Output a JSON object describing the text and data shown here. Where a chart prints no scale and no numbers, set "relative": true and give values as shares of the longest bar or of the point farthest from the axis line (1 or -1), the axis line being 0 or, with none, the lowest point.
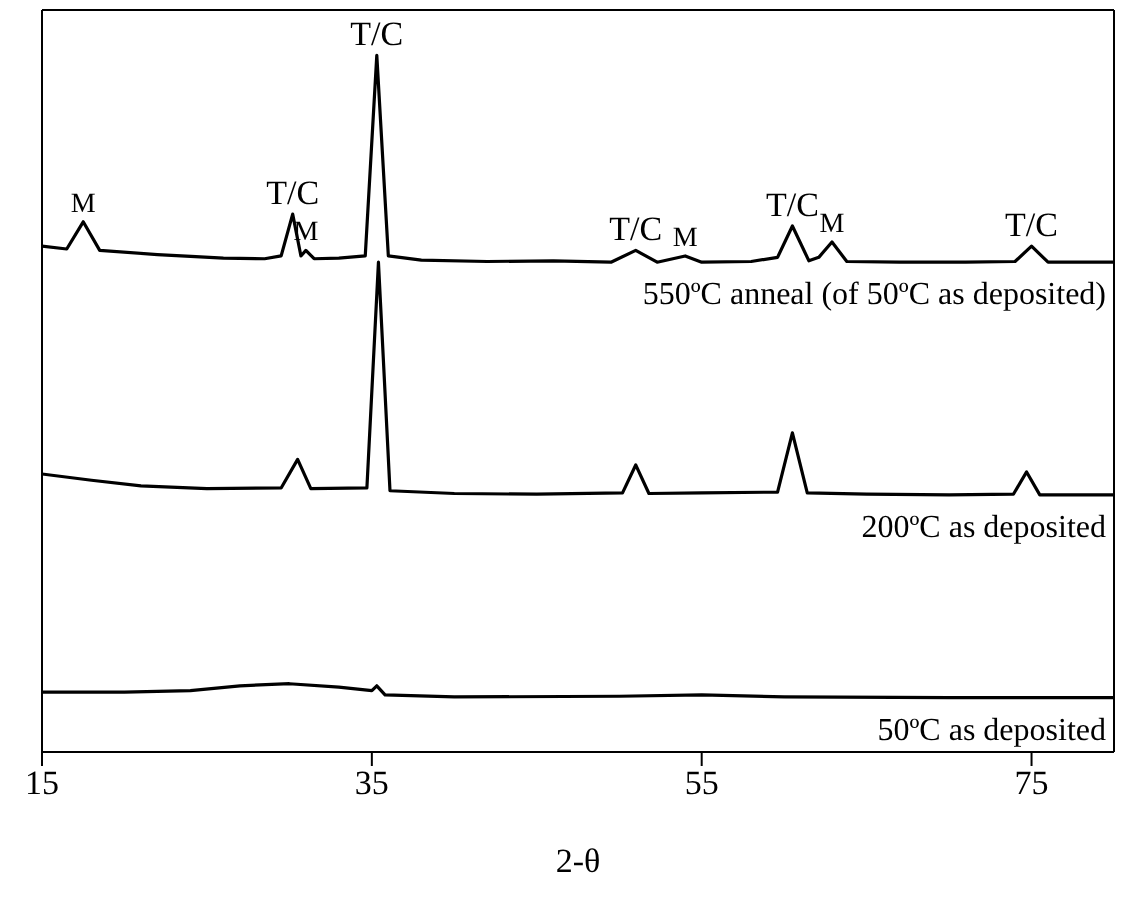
{
  "chart_data": {
    "type": "line",
    "relative": true,
    "xlabel": "2-θ",
    "xlim": [
      15,
      80
    ],
    "xticks": [
      15,
      35,
      55,
      75
    ],
    "grid": false,
    "legend": false,
    "marker": "none",
    "line_style": "solid",
    "series": [
      {
        "name": "550ºC anneal (of 50ºC as deposited)",
        "color": "#000000",
        "x": [
          15,
          16.5,
          17.5,
          18.5,
          22,
          26,
          28.5,
          29.5,
          30.2,
          30.7,
          31.0,
          31.5,
          33,
          34.6,
          35.3,
          36.0,
          38,
          42,
          46,
          49.5,
          51.0,
          52.3,
          54.0,
          55,
          58,
          59.6,
          60.5,
          61.5,
          62.1,
          62.9,
          63.8,
          67,
          71,
          74.0,
          75.0,
          76.0,
          80
        ],
        "values": [
          0.726,
          0.722,
          0.761,
          0.72,
          0.714,
          0.709,
          0.708,
          0.712,
          0.772,
          0.712,
          0.72,
          0.708,
          0.709,
          0.712,
          1.0,
          0.712,
          0.706,
          0.704,
          0.705,
          0.703,
          0.72,
          0.703,
          0.712,
          0.703,
          0.704,
          0.71,
          0.755,
          0.705,
          0.71,
          0.732,
          0.704,
          0.703,
          0.703,
          0.704,
          0.726,
          0.703,
          0.703
        ]
      },
      {
        "name": "200ºC as deposited",
        "color": "#000000",
        "x": [
          15,
          18,
          21,
          25,
          29.5,
          30.5,
          31.3,
          34.7,
          35.4,
          36.1,
          40,
          45,
          50.2,
          51.0,
          51.8,
          55,
          59.6,
          60.5,
          61.4,
          65,
          70,
          73.9,
          74.7,
          75.5,
          80
        ],
        "values": [
          0.399,
          0.39,
          0.382,
          0.378,
          0.379,
          0.42,
          0.378,
          0.379,
          0.703,
          0.375,
          0.371,
          0.37,
          0.372,
          0.412,
          0.371,
          0.372,
          0.373,
          0.458,
          0.372,
          0.37,
          0.369,
          0.37,
          0.402,
          0.369,
          0.369
        ]
      },
      {
        "name": "50ºC as deposited",
        "color": "#000000",
        "x": [
          15,
          20,
          24,
          27,
          30,
          33,
          35.0,
          35.3,
          35.8,
          40,
          50,
          55,
          60,
          70,
          80
        ],
        "values": [
          0.086,
          0.086,
          0.088,
          0.095,
          0.098,
          0.093,
          0.088,
          0.095,
          0.082,
          0.079,
          0.08,
          0.082,
          0.079,
          0.078,
          0.078
        ]
      }
    ],
    "annotations": [
      {
        "text": "M",
        "x": 17.5,
        "y": 0.761
      },
      {
        "text": "T/C",
        "x": 30.2,
        "y": 0.772
      },
      {
        "text": "M",
        "x": 31.0,
        "y": 0.72
      },
      {
        "text": "T/C",
        "x": 35.3,
        "y": 1.0
      },
      {
        "text": "T/C",
        "x": 51.0,
        "y": 0.72
      },
      {
        "text": "M",
        "x": 54.0,
        "y": 0.712
      },
      {
        "text": "T/C",
        "x": 60.5,
        "y": 0.755
      },
      {
        "text": "M",
        "x": 62.9,
        "y": 0.732
      },
      {
        "text": "T/C",
        "x": 75.0,
        "y": 0.726
      }
    ]
  }
}
